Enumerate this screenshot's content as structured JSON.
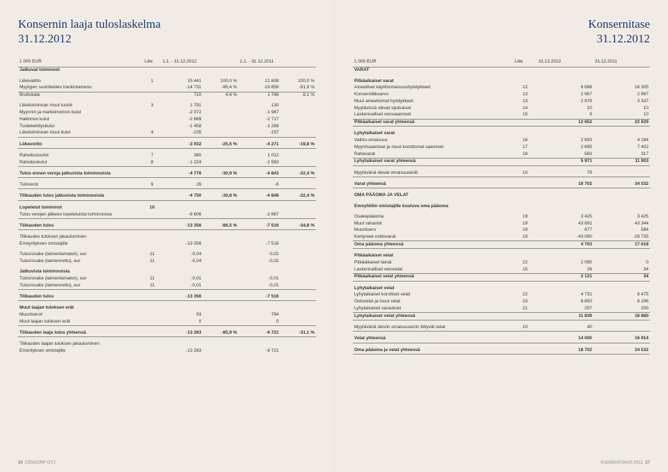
{
  "left": {
    "title_l1": "Konsernin laaja tuloslaskelma",
    "title_l2": "31.12.2012",
    "headers": {
      "h1": "1 000 EUR",
      "h2": "Liite",
      "h3": "1.1. - 31.12.2012",
      "h4": "",
      "h5": "1.1. - 31.12.2011",
      "h6": ""
    },
    "rows": [
      {
        "cls": "bold",
        "label": "Jatkuvat toiminnot",
        "n": "",
        "v1": "",
        "p1": "",
        "v2": "",
        "p2": ""
      },
      {
        "cls": "sp",
        "label": "Liikevaihto",
        "n": "1",
        "v1": "15 441",
        "p1": "100,0 %",
        "v2": "21 608",
        "p2": "100,0 %"
      },
      {
        "label": "Myytyjen suoritteiden hankintameno",
        "n": "",
        "v1": "-14 731",
        "p1": "-95,4 %",
        "v2": "-19 859",
        "p2": "-91,9 %"
      },
      {
        "cls": "line-t",
        "label": "Bruttokate",
        "n": "",
        "v1": "710",
        "p1": "4,6 %",
        "v2": "1 748",
        "p2": "8,1 %"
      },
      {
        "cls": "sp",
        "label": "Liiketoiminnan muut tuotot",
        "n": "3",
        "v1": "1 791",
        "p1": "",
        "v2": "130",
        "p2": ""
      },
      {
        "label": "Myynnin ja markkinoinnin kulut",
        "n": "",
        "v1": "-2 072",
        "p1": "",
        "v2": "-1 987",
        "p2": ""
      },
      {
        "label": "Hallinnon kulut",
        "n": "",
        "v1": "-2 669",
        "p1": "",
        "v2": "-2 717",
        "p2": ""
      },
      {
        "label": "Tuotekehityskulut",
        "n": "",
        "v1": "-1 458",
        "p1": "",
        "v2": "-1 288",
        "p2": ""
      },
      {
        "label": "Liiketoiminnan muut kulut",
        "n": "4",
        "v1": "-235",
        "p1": "",
        "v2": "-157",
        "p2": ""
      },
      {
        "cls": "bold sp line-t line-b",
        "label": "Liikevoitto",
        "n": "",
        "v1": "-3 932",
        "p1": "-25,5 %",
        "v2": "-4 271",
        "p2": "-19,8 %"
      },
      {
        "cls": "sp",
        "label": "Rahoitustuotot",
        "n": "7",
        "v1": "380",
        "p1": "",
        "v2": "1 012",
        "p2": ""
      },
      {
        "label": "Rahoituskulut",
        "n": "8",
        "v1": "-1 224",
        "p1": "",
        "v2": "-1 583",
        "p2": ""
      },
      {
        "cls": "bold sp line-t line-b",
        "label": "Tulos ennen veroja jatkuvista toiminnoista",
        "n": "",
        "v1": "-4 776",
        "p1": "-30,9 %",
        "v2": "-4 843",
        "p2": "-22,4 %"
      },
      {
        "cls": "sp",
        "label": "Tuloverot",
        "n": "9",
        "v1": "26",
        "p1": "",
        "v2": "-6",
        "p2": ""
      },
      {
        "cls": "bold sp line-t line-b",
        "label": "Tilikauden tulos jatkuvista toiminnoista",
        "n": "",
        "v1": "-4 750",
        "p1": "-30,8 %",
        "v2": "-4 848",
        "p2": "-22,4 %"
      },
      {
        "cls": "bold sp",
        "label": "Lopetetut toiminnot",
        "n": "10",
        "v1": "",
        "p1": "",
        "v2": "",
        "p2": ""
      },
      {
        "label": "Tulos verojen jälkeen lopetetuista toiminnoista",
        "n": "",
        "v1": "-8 606",
        "p1": "",
        "v2": "-2 667",
        "p2": ""
      },
      {
        "cls": "bold sp line-t line-b",
        "label": "Tilikauden tulos",
        "n": "",
        "v1": "-13 356",
        "p1": "-86,5 %",
        "v2": "-7 516",
        "p2": "-34,8 %"
      },
      {
        "cls": "sp",
        "label": "Tilikauden tuloksen jakautuminen",
        "n": "",
        "v1": "",
        "p1": "",
        "v2": "",
        "p2": ""
      },
      {
        "label": "Emoyrityksen omistajille",
        "n": "",
        "v1": "-13 356",
        "p1": "",
        "v2": "-7 516",
        "p2": ""
      },
      {
        "cls": "sp",
        "label": "Tulos/osake (laimentamaton), eur",
        "n": "11",
        "v1": "-0,04",
        "p1": "",
        "v2": "-0,02",
        "p2": ""
      },
      {
        "label": "Tulos/osake (laimennettu), eur",
        "n": "11",
        "v1": "-0,04",
        "p1": "",
        "v2": "-0,02",
        "p2": ""
      },
      {
        "cls": "bold sp",
        "label": "Jatkuvista toiminnoista",
        "n": "",
        "v1": "",
        "p1": "",
        "v2": "",
        "p2": ""
      },
      {
        "label": "Tulos/osake (laimentamaton), eur",
        "n": "11",
        "v1": "-0,01",
        "p1": "",
        "v2": "-0,01",
        "p2": ""
      },
      {
        "label": "Tulos/osake (laimennettu), eur",
        "n": "11",
        "v1": "-0,01",
        "p1": "",
        "v2": "-0,01",
        "p2": ""
      },
      {
        "cls": "bold sp line-t line-b",
        "label": "Tilikauden tulos",
        "n": "",
        "v1": "-13 356",
        "p1": "",
        "v2": "-7 516",
        "p2": ""
      },
      {
        "cls": "bold sp",
        "label": "Muut laajan tuloksen erät",
        "n": "",
        "v1": "",
        "p1": "",
        "v2": "",
        "p2": ""
      },
      {
        "label": "Muuntoerot",
        "n": "",
        "v1": "93",
        "p1": "",
        "v2": "794",
        "p2": ""
      },
      {
        "label": "Muut laajan tuloksen erät",
        "n": "",
        "v1": "0",
        "p1": "",
        "v2": "0",
        "p2": ""
      },
      {
        "cls": "bold sp line-t line-b",
        "label": "Tilikauden laaja tulos yhteensä",
        "n": "",
        "v1": "-13 263",
        "p1": "-85,9 %",
        "v2": "-6 721",
        "p2": "-31,1 %"
      },
      {
        "cls": "sp",
        "label": "Tilikauden laajan tuloksen jakautuminen",
        "n": "",
        "v1": "",
        "p1": "",
        "v2": "",
        "p2": ""
      },
      {
        "label": "Emorityksen omistajille",
        "n": "",
        "v1": "-13 263",
        "p1": "",
        "v2": "-6 721",
        "p2": ""
      }
    ],
    "footer": {
      "page": "26",
      "company": "CENCORP OYJ"
    }
  },
  "right": {
    "title_l1": "Konsernitase",
    "title_l2": "31.12.2012",
    "headers": {
      "h1": "1 000 EUR",
      "h2": "Liite",
      "h3": "31.12.2012",
      "h4": "31.12.2011"
    },
    "rows": [
      {
        "cls": "bold",
        "label": "VARAT",
        "n": "",
        "v1": "",
        "v2": ""
      },
      {
        "cls": "bold sp",
        "label": "Pitkäaikaiset varat",
        "n": "",
        "v1": "",
        "v2": ""
      },
      {
        "label": "Aineelliset käyttöomaisuushyödykkeet",
        "n": "12",
        "v1": "6 688",
        "v2": "16 305"
      },
      {
        "label": "Konserniliikearvo",
        "n": "13",
        "v1": "2 967",
        "v2": "2 967"
      },
      {
        "label": "Muut aineettomat hyödykkeet",
        "n": "13",
        "v1": "2 979",
        "v2": "3 337"
      },
      {
        "label": "Myytävissä olevat sijoitukset",
        "n": "14",
        "v1": "10",
        "v2": "10"
      },
      {
        "label": "Laskennalliset verosaamiset",
        "n": "15",
        "v1": "9",
        "v2": "10"
      },
      {
        "cls": "bold line-t line-b",
        "label": "Pitkäaikaiset varat yhteensä",
        "n": "",
        "v1": "12 652",
        "v2": "22 629"
      },
      {
        "cls": "bold sp",
        "label": "Lyhytaikaiset varat",
        "n": "",
        "v1": "",
        "v2": ""
      },
      {
        "label": "Vaihto-omaisuus",
        "n": "16",
        "v1": "2 693",
        "v2": "4 184"
      },
      {
        "label": "Myyntisaamiset ja muut korottomat saamiset",
        "n": "17",
        "v1": "2 695",
        "v2": "7 402"
      },
      {
        "label": "Rahavarat",
        "n": "18",
        "v1": "583",
        "v2": "317"
      },
      {
        "cls": "bold line-t line-b",
        "label": "Lyhytaikaiset varat yhteensä",
        "n": "",
        "v1": "5 971",
        "v2": "11 903"
      },
      {
        "cls": "sp",
        "label": "Myytävänä olevat omaisuuserät",
        "n": "10",
        "v1": "79",
        "v2": ""
      },
      {
        "cls": "bold sp line-t line-b",
        "label": "Varat yhteensä",
        "n": "",
        "v1": "18 702",
        "v2": "34 532"
      },
      {
        "cls": "bold sp",
        "label": "OMA PÄÄOMA JA VELAT",
        "n": "",
        "v1": "",
        "v2": ""
      },
      {
        "cls": "bold sp",
        "label": "Emoyhtiön omistajille kuuluva oma pääoma",
        "n": "",
        "v1": "",
        "v2": ""
      },
      {
        "cls": "sp",
        "label": "Osakepääoma",
        "n": "19",
        "v1": "3 425",
        "v2": "3 425"
      },
      {
        "label": "Muut rahastot",
        "n": "19",
        "v1": "43 691",
        "v2": "43 344"
      },
      {
        "label": "Muuntoero",
        "n": "19",
        "v1": "677",
        "v2": "584"
      },
      {
        "label": "Kertyneet voittovarat",
        "n": "19",
        "v1": "-43 090",
        "v2": "-29 735"
      },
      {
        "cls": "bold line-t line-b",
        "label": "Oma pääoma yhteensä",
        "n": "",
        "v1": "4 703",
        "v2": "17 618"
      },
      {
        "cls": "bold sp",
        "label": "Pitkäaikaiset velat",
        "n": "",
        "v1": "",
        "v2": ""
      },
      {
        "label": "Pitkäaikaiset lainat",
        "n": "22",
        "v1": "2 095",
        "v2": "0"
      },
      {
        "label": "Laskennalliset verovelat",
        "n": "15",
        "v1": "26",
        "v2": "34"
      },
      {
        "cls": "bold line-t line-b",
        "label": "Pitkäaikaiset velat yhteensä",
        "n": "",
        "v1": "2 121",
        "v2": "34"
      },
      {
        "cls": "bold sp",
        "label": "Lyhytaikaiset velat",
        "n": "",
        "v1": "",
        "v2": ""
      },
      {
        "label": "Lyhytaikaiset korolliset velat",
        "n": "22",
        "v1": "4 731",
        "v2": "8 475"
      },
      {
        "label": "Ostovelat ja muut velat",
        "n": "23",
        "v1": "6 850",
        "v2": "8 196"
      },
      {
        "label": "Lyhytaikaiset varaukset",
        "n": "21",
        "v1": "257",
        "v2": "209"
      },
      {
        "cls": "bold line-t line-b",
        "label": "Lyhytaikaiset velat yhteensä",
        "n": "",
        "v1": "11 839",
        "v2": "16 880"
      },
      {
        "cls": "sp",
        "label": "Myytävänä oleviin omaisuuseriin liittyvät velat",
        "n": "10",
        "v1": "40",
        "v2": ""
      },
      {
        "cls": "bold sp line-t line-b",
        "label": "Velat yhteensä",
        "n": "",
        "v1": "14 000",
        "v2": "16 914"
      },
      {
        "cls": "bold sp line-t line-b",
        "label": "Oma pääoma ja velat yhteensä",
        "n": "",
        "v1": "18 702",
        "v2": "34 532"
      }
    ],
    "footer": {
      "right": "VUOSIKATSAUS 2012",
      "page": "27"
    }
  }
}
